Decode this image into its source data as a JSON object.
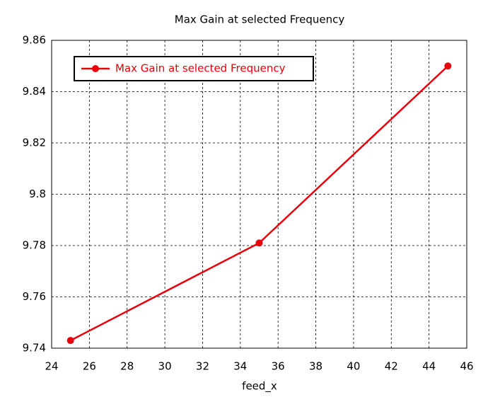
{
  "chart_data": {
    "type": "line",
    "title": "Max Gain at selected Frequency",
    "x_label": "feed_x",
    "x": [
      25,
      35,
      45
    ],
    "series": [
      {
        "name": "Max Gain at selected Frequency",
        "color": "#e8000b",
        "values": [
          9.743,
          9.781,
          9.85
        ]
      }
    ],
    "xlim": [
      24,
      46
    ],
    "xticks": [
      24,
      26,
      28,
      30,
      32,
      34,
      36,
      38,
      40,
      42,
      44,
      46
    ],
    "ylim": [
      9.74,
      9.86
    ],
    "yticks": [
      9.74,
      9.76,
      9.78,
      9.8,
      9.82,
      9.84,
      9.86
    ],
    "grid": true,
    "legend": "upper left"
  }
}
